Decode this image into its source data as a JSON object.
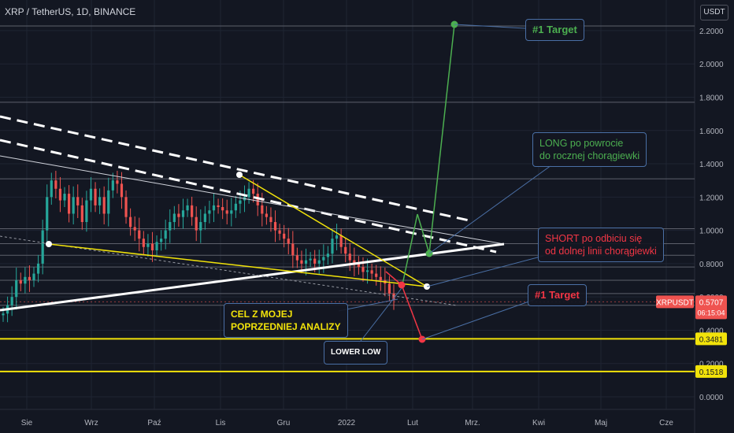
{
  "header": {
    "symbol": "XRP / TetherUS, 1D, BINANCE",
    "currency": "USDT"
  },
  "colors": {
    "bg": "#131722",
    "up": "#26a69a",
    "down": "#ef5350",
    "yellow": "#f2e30a",
    "green": "#4caf50",
    "red": "#f23645",
    "white": "#ffffff",
    "callout_border": "#4a6fa5"
  },
  "chart_data": {
    "type": "candlestick",
    "yaxis": {
      "ticks": [
        "2.2000",
        "2.0000",
        "1.8000",
        "1.6000",
        "1.4000",
        "1.2000",
        "1.0000",
        "0.8000",
        "0.6000",
        "0.4000",
        "0.2000",
        "0.0000"
      ]
    },
    "xaxis": {
      "ticks": [
        "Sie",
        "Wrz",
        "Paź",
        "Lis",
        "Gru",
        "2022",
        "Lut",
        "Mrz.",
        "Kwi",
        "Maj",
        "Cze"
      ]
    },
    "price_labels": [
      {
        "label": "XRPUSDT",
        "value": "0.5707",
        "sub": "06:15:04",
        "color": "#ef5350"
      },
      {
        "label": "",
        "value": "0.3481",
        "sub": "",
        "color": "#f2e30a"
      },
      {
        "label": "",
        "value": "0.1518",
        "sub": "",
        "color": "#f2e30a"
      }
    ],
    "horizontal_levels": [
      2.228,
      1.77,
      1.31,
      1.01,
      0.92,
      0.85,
      0.78,
      0.7,
      0.62,
      0.55,
      0.3481,
      0.1518
    ],
    "candles_close_path": [
      0.5,
      0.55,
      0.6,
      0.7,
      0.68,
      0.72,
      0.7,
      0.74,
      0.8,
      1.0,
      1.2,
      1.3,
      1.25,
      1.18,
      1.22,
      1.1,
      1.2,
      1.15,
      1.05,
      1.18,
      1.25,
      1.15,
      1.2,
      1.1,
      1.24,
      1.3,
      1.28,
      1.2,
      1.08,
      1.02,
      1.0,
      0.95,
      0.9,
      0.92,
      0.88,
      0.93,
      0.95,
      1.0,
      1.05,
      1.1,
      1.08,
      1.12,
      1.15,
      1.08,
      1.0,
      1.05,
      1.1,
      1.12,
      1.15,
      1.14,
      1.12,
      1.1,
      1.12,
      1.16,
      1.18,
      1.2,
      1.25,
      1.22,
      1.15,
      1.1,
      1.08,
      1.05,
      1.0,
      0.98,
      0.95,
      0.92,
      0.85,
      0.82,
      0.8,
      0.82,
      0.83,
      0.8,
      0.82,
      0.84,
      0.86,
      0.95,
      0.97,
      0.9,
      0.86,
      0.82,
      0.8,
      0.78,
      0.75,
      0.76,
      0.74,
      0.72,
      0.7,
      0.68,
      0.62,
      0.58
    ],
    "markers": [
      {
        "name": "green-start",
        "x": "Lut",
        "y": 0.86,
        "color": "#4caf50"
      },
      {
        "name": "green-target",
        "x": "Mrz.",
        "y": 2.228,
        "color": "#4caf50"
      },
      {
        "name": "red-target",
        "x": "Lut",
        "y": 0.348,
        "color": "#f23645"
      },
      {
        "name": "red-start",
        "x": "Lut",
        "y": 0.67,
        "color": "#f23645"
      }
    ],
    "annotations": {
      "target_top": "#1 Target",
      "target_mid": "#1 Target",
      "long_line1": "LONG po powrocie",
      "long_line2": "do rocznej chorągiewki",
      "short_line1": "SHORT po odbiciu się",
      "short_line2": "od dolnej linii chorągiewki",
      "cel_line1": "CEL Z MOJEJ",
      "cel_line2": "POPRZEDNIEJ ANALIZY",
      "lower_low": "LOWER LOW"
    }
  }
}
